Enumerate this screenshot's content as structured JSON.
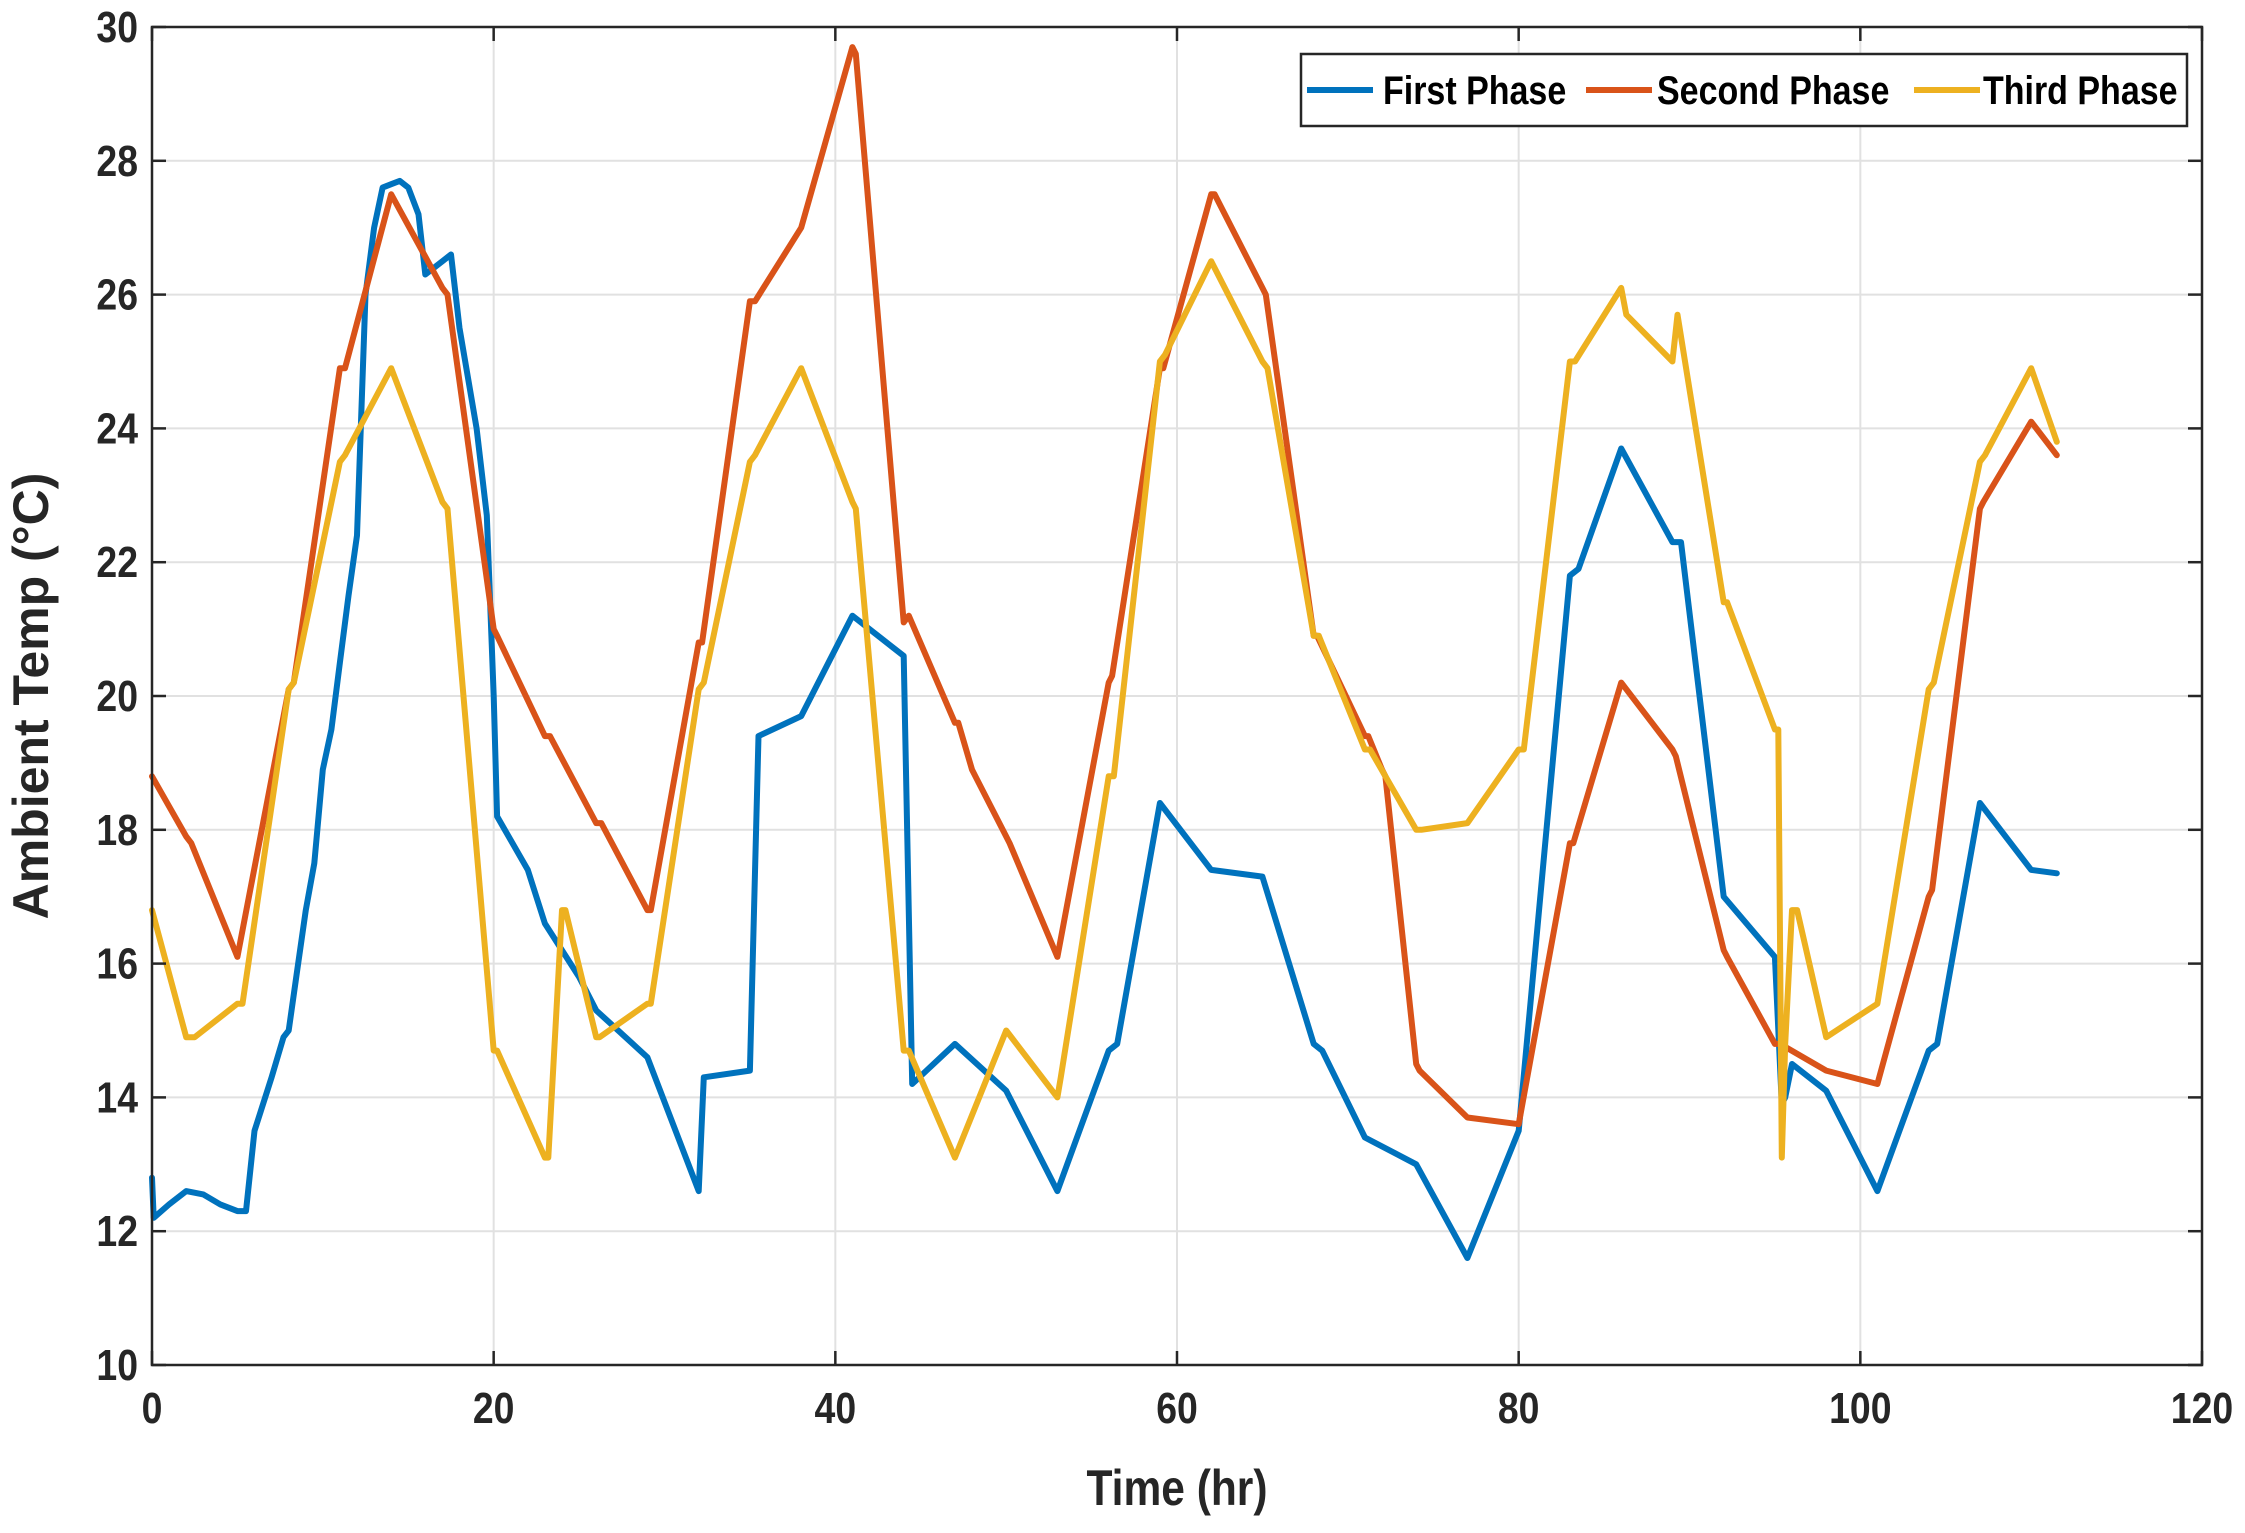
{
  "chart_data": {
    "type": "line",
    "title": "",
    "xlabel": "Time (hr)",
    "ylabel": "Ambient Temp (°C)",
    "xlim": [
      0,
      120
    ],
    "ylim": [
      10,
      30
    ],
    "xticks": [
      0,
      20,
      40,
      60,
      80,
      100,
      120
    ],
    "yticks": [
      10,
      12,
      14,
      16,
      18,
      20,
      22,
      24,
      26,
      28,
      30
    ],
    "grid": true,
    "legend_position": "top-right",
    "series": [
      {
        "name": "First Phase",
        "color": "#0072BD",
        "x": [
          0,
          0.1,
          1,
          2,
          3,
          4,
          5,
          5.5,
          6,
          7,
          7.7,
          8,
          8.5,
          9,
          9.5,
          10,
          10.5,
          11,
          11.5,
          12,
          12.5,
          13,
          13.5,
          14,
          14.5,
          15,
          15.3,
          15.6,
          16,
          17,
          17.5,
          18,
          19,
          19.6,
          20,
          20.2,
          22,
          23,
          25,
          26,
          29,
          32,
          32.3,
          35,
          35.5,
          38,
          41,
          44,
          44.5,
          47,
          50,
          53,
          56,
          56.5,
          59,
          62,
          65,
          68,
          68.5,
          71,
          74,
          77,
          80,
          83,
          83.5,
          86,
          89,
          89.5,
          92,
          95,
          95.4,
          95.6,
          96,
          98,
          101,
          104,
          104.5,
          107,
          110,
          111.5
        ],
        "values": [
          12.8,
          12.2,
          12.4,
          12.6,
          12.55,
          12.4,
          12.3,
          12.3,
          13.5,
          14.3,
          14.9,
          15.0,
          15.9,
          16.8,
          17.5,
          18.9,
          19.5,
          20.5,
          21.5,
          22.4,
          26.0,
          27.0,
          27.6,
          27.65,
          27.7,
          27.6,
          27.4,
          27.2,
          26.3,
          26.5,
          26.6,
          25.5,
          24.0,
          22.7,
          20.0,
          18.2,
          17.4,
          16.6,
          15.8,
          15.3,
          14.6,
          12.6,
          14.3,
          14.4,
          19.4,
          19.7,
          21.2,
          20.6,
          14.2,
          14.8,
          14.1,
          12.6,
          14.7,
          14.8,
          18.4,
          17.4,
          17.3,
          14.8,
          14.7,
          13.4,
          13.0,
          11.6,
          13.5,
          21.8,
          21.9,
          23.7,
          22.3,
          22.3,
          17.0,
          16.1,
          13.9,
          14.0,
          14.5,
          14.1,
          12.6,
          14.7,
          14.8,
          18.4,
          17.4,
          17.35
        ]
      },
      {
        "name": "Second Phase",
        "color": "#D95319",
        "x": [
          0,
          2,
          2.3,
          5,
          8,
          8.3,
          11,
          11.3,
          14,
          17,
          17.3,
          20,
          20.2,
          23,
          23.3,
          26,
          26.3,
          29,
          29.2,
          32,
          32.2,
          35,
          35.3,
          38,
          41,
          41.2,
          44,
          44.3,
          47,
          47.2,
          48,
          48.2,
          50,
          50.2,
          53,
          56,
          56.2,
          59,
          59.2,
          62,
          62.2,
          65,
          65.2,
          68,
          68.2,
          71,
          71.2,
          72,
          72.2,
          74,
          74.2,
          77,
          80,
          83,
          83.2,
          86,
          89,
          89.2,
          92,
          92.2,
          95,
          95.3,
          98,
          101,
          104,
          104.2,
          107,
          107.2,
          110,
          111.5
        ],
        "values": [
          18.8,
          17.9,
          17.8,
          16.1,
          20.1,
          20.2,
          24.9,
          24.9,
          27.5,
          26.1,
          26.0,
          21.0,
          20.9,
          19.4,
          19.4,
          18.1,
          18.1,
          16.8,
          16.8,
          20.8,
          20.8,
          25.9,
          25.9,
          27.0,
          29.7,
          29.6,
          21.1,
          21.2,
          19.6,
          19.6,
          18.9,
          18.8,
          17.9,
          17.8,
          16.1,
          20.2,
          20.3,
          24.9,
          24.9,
          27.5,
          27.5,
          26.1,
          26.0,
          20.9,
          20.9,
          19.4,
          19.4,
          18.9,
          18.8,
          14.5,
          14.4,
          13.7,
          13.6,
          17.8,
          17.8,
          20.2,
          19.2,
          19.1,
          16.2,
          16.1,
          14.8,
          14.8,
          14.4,
          14.2,
          17.0,
          17.1,
          22.8,
          22.9,
          24.1,
          23.6
        ]
      },
      {
        "name": "Third Phase",
        "color": "#EDB120",
        "x": [
          0,
          2,
          2.5,
          5,
          5.3,
          8,
          8.3,
          11,
          11.3,
          14,
          17,
          17.3,
          20,
          20.2,
          23,
          23.2,
          24,
          24.2,
          26,
          26.2,
          29,
          29.2,
          32,
          32.3,
          35,
          35.3,
          38,
          41,
          41.2,
          44,
          44.3,
          47,
          50,
          53,
          53.2,
          56,
          56.3,
          59,
          59.3,
          62,
          65,
          65.3,
          68,
          68.3,
          71,
          71.3,
          74,
          74.3,
          77,
          80,
          80.3,
          83,
          83.3,
          86,
          86.3,
          89,
          89.3,
          92,
          92.2,
          95,
          95.2,
          95.4,
          95.6,
          96,
          96.3,
          98,
          101,
          104,
          104.3,
          107,
          107.3,
          110,
          111.5
        ],
        "values": [
          16.8,
          14.9,
          14.9,
          15.4,
          15.4,
          20.1,
          20.2,
          23.5,
          23.6,
          24.9,
          22.9,
          22.8,
          14.7,
          14.7,
          13.1,
          13.1,
          16.8,
          16.8,
          14.9,
          14.9,
          15.4,
          15.4,
          20.1,
          20.2,
          23.5,
          23.6,
          24.9,
          22.9,
          22.8,
          14.7,
          14.7,
          13.1,
          15.0,
          14.0,
          14.3,
          18.8,
          18.8,
          25.0,
          25.1,
          26.5,
          25.0,
          24.9,
          20.9,
          20.9,
          19.2,
          19.2,
          18.0,
          18.0,
          18.1,
          19.2,
          19.2,
          25.0,
          25.0,
          26.1,
          25.7,
          25.0,
          25.7,
          21.4,
          21.4,
          19.5,
          19.5,
          13.1,
          14.8,
          16.8,
          16.8,
          14.9,
          15.4,
          20.1,
          20.2,
          23.5,
          23.6,
          24.9,
          23.8
        ]
      }
    ]
  }
}
